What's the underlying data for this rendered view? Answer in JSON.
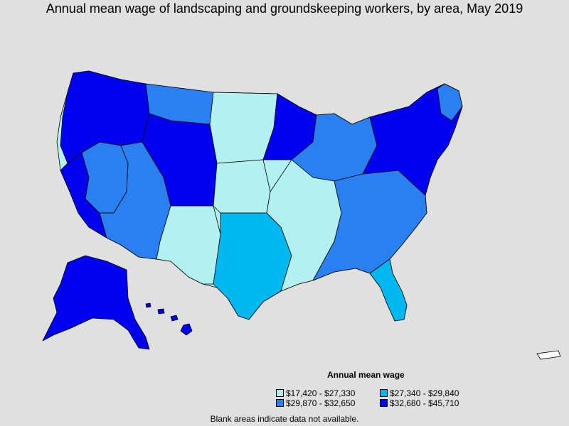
{
  "title": "Annual mean wage of landscaping and groundskeeping workers, by area, May 2019",
  "legend": {
    "title": "Annual mean wage",
    "items": [
      {
        "label": "$17,420 - $27,330",
        "color": "#b3f0f0"
      },
      {
        "label": "$27,340 - $29,840",
        "color": "#00b8f0"
      },
      {
        "label": "$29,870 - $32,650",
        "color": "#2a80f0"
      },
      {
        "label": "$32,680 - $45,710",
        "color": "#0000ee"
      }
    ]
  },
  "footnote": "Blank areas indicate data not available."
}
